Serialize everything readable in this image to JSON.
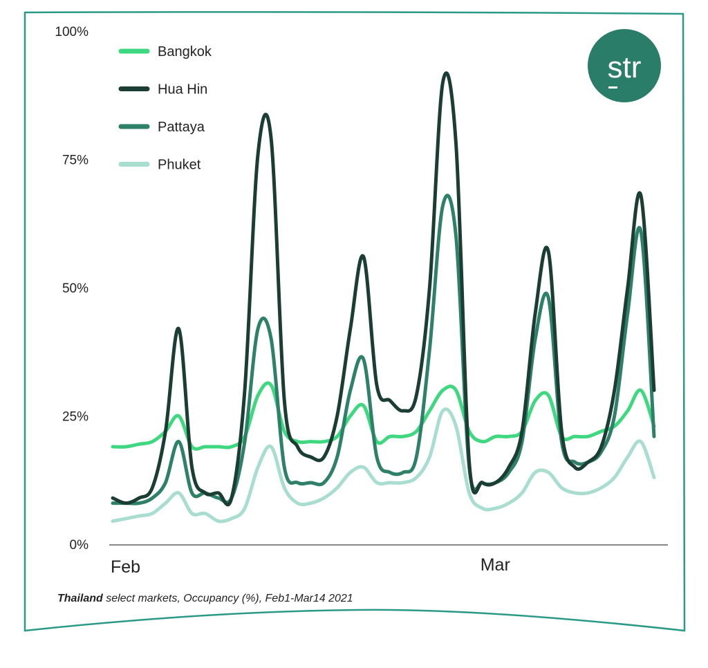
{
  "chart_data": {
    "type": "line",
    "title": "",
    "caption_bold": "Thailand",
    "caption_rest": " select markets, Occupancy (%), Feb1-Mar14 2021",
    "xlabel": "",
    "ylabel": "",
    "ylim": [
      0,
      100
    ],
    "yticks": [
      0,
      25,
      50,
      75,
      100
    ],
    "ytick_labels": [
      "0%",
      "25%",
      "50%",
      "75%",
      "100%"
    ],
    "x_count": 42,
    "xticks": [
      {
        "index": 0,
        "label": "Feb"
      },
      {
        "index": 28,
        "label": "Mar"
      }
    ],
    "legend_position": "top-left",
    "logo_text": "str",
    "series": [
      {
        "name": "Bangkok",
        "color": "#3fd880",
        "values": [
          19,
          19,
          19.5,
          20,
          22,
          25,
          19,
          19,
          19,
          19,
          21,
          29,
          31,
          22,
          20,
          20,
          20,
          21,
          25,
          27,
          20,
          21,
          21,
          22,
          26,
          30,
          30,
          22,
          20,
          21,
          21,
          22,
          28,
          29,
          21,
          21,
          21,
          22,
          23,
          26,
          30,
          23
        ]
      },
      {
        "name": "Hua Hin",
        "color": "#1c3d33",
        "values": [
          9,
          8,
          9,
          11,
          22,
          42,
          15,
          10,
          10,
          9,
          30,
          76,
          79,
          28,
          19,
          17,
          17,
          25,
          42,
          56,
          31,
          28,
          26,
          29,
          50,
          90,
          78,
          16,
          12,
          12,
          15,
          22,
          45,
          57,
          22,
          15,
          16,
          19,
          30,
          50,
          68,
          30
        ]
      },
      {
        "name": "Pattaya",
        "color": "#2e8068",
        "values": [
          8,
          8,
          8,
          9,
          12,
          20,
          10,
          10,
          9,
          9,
          20,
          42,
          40,
          15,
          12,
          12,
          12,
          17,
          30,
          36,
          17,
          14,
          14,
          17,
          38,
          66,
          60,
          15,
          12,
          12,
          14,
          20,
          40,
          48,
          20,
          16,
          16,
          18,
          25,
          45,
          61,
          21
        ]
      },
      {
        "name": "Phuket",
        "color": "#a8ddd0",
        "values": [
          4.5,
          5,
          5.5,
          6,
          8,
          10,
          6,
          6,
          4.5,
          5,
          7,
          15,
          19,
          11,
          8,
          8,
          9,
          11,
          14,
          15,
          12,
          12,
          12,
          13,
          17,
          26,
          23,
          10,
          7,
          7,
          8,
          10,
          14,
          14,
          11,
          10,
          10,
          11,
          13,
          17,
          20,
          13
        ]
      }
    ]
  },
  "colors": {
    "frame": "#2a9a86",
    "logo": "#2a7d68",
    "axis": "#888888"
  }
}
